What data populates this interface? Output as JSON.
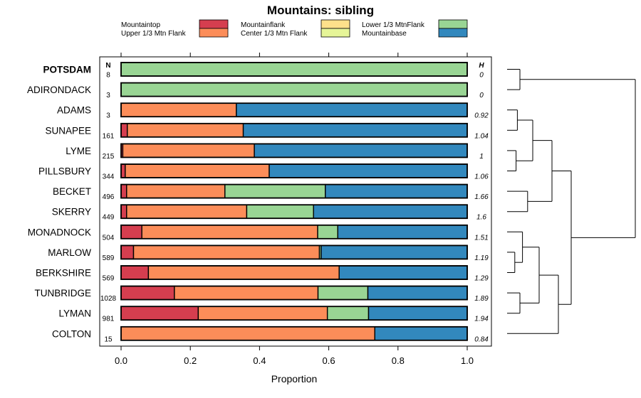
{
  "chart_data": {
    "type": "bar",
    "orientation": "horizontal",
    "stacked": true,
    "title": "Mountains: sibling",
    "xlabel": "Proportion",
    "xlim": [
      0,
      1
    ],
    "xticks": [
      "0.0",
      "0.2",
      "0.4",
      "0.6",
      "0.8",
      "1.0"
    ],
    "n_header": "N",
    "h_header": "H",
    "legend": [
      {
        "name": "Mountaintop",
        "color": "#d53e4f"
      },
      {
        "name": "Upper 1/3 Mtn Flank",
        "color": "#fc8d59"
      },
      {
        "name": "Mountainflank",
        "color": "#fee08b"
      },
      {
        "name": "Center 1/3 Mtn Flank",
        "color": "#e6f598"
      },
      {
        "name": "Lower 1/3 MtnFlank",
        "color": "#99d594"
      },
      {
        "name": "Mountainbase",
        "color": "#3288bd"
      }
    ],
    "categories": [
      {
        "name": "POTSDAM",
        "bold": true,
        "n": "8",
        "h": "0",
        "values": [
          0,
          0,
          0,
          0,
          1.0,
          0
        ]
      },
      {
        "name": "ADIRONDACK",
        "bold": false,
        "n": "3",
        "h": "0",
        "values": [
          0,
          0,
          0,
          0,
          1.0,
          0
        ]
      },
      {
        "name": "ADAMS",
        "bold": false,
        "n": "3",
        "h": "0.92",
        "values": [
          0,
          0.333,
          0,
          0,
          0,
          0.667
        ]
      },
      {
        "name": "SUNAPEE",
        "bold": false,
        "n": "161",
        "h": "1.04",
        "values": [
          0.018,
          0.335,
          0,
          0,
          0,
          0.647
        ]
      },
      {
        "name": "LYME",
        "bold": false,
        "n": "215",
        "h": "1",
        "values": [
          0.005,
          0.38,
          0,
          0,
          0,
          0.615
        ]
      },
      {
        "name": "PILLSBURY",
        "bold": false,
        "n": "344",
        "h": "1.06",
        "values": [
          0.012,
          0.416,
          0,
          0,
          0,
          0.572
        ]
      },
      {
        "name": "BECKET",
        "bold": false,
        "n": "496",
        "h": "1.66",
        "values": [
          0.016,
          0.284,
          0,
          0,
          0.29,
          0.41
        ]
      },
      {
        "name": "SKERRY",
        "bold": false,
        "n": "449",
        "h": "1.6",
        "values": [
          0.016,
          0.347,
          0,
          0,
          0.193,
          0.444
        ]
      },
      {
        "name": "MONADNOCK",
        "bold": false,
        "n": "504",
        "h": "1.51",
        "values": [
          0.06,
          0.508,
          0,
          0,
          0.058,
          0.374
        ]
      },
      {
        "name": "MARLOW",
        "bold": false,
        "n": "589",
        "h": "1.19",
        "values": [
          0.036,
          0.537,
          0,
          0,
          0.005,
          0.422
        ]
      },
      {
        "name": "BERKSHIRE",
        "bold": false,
        "n": "569",
        "h": "1.29",
        "values": [
          0.079,
          0.551,
          0,
          0,
          0,
          0.37
        ]
      },
      {
        "name": "TUNBRIDGE",
        "bold": false,
        "n": "1028",
        "h": "1.89",
        "values": [
          0.154,
          0.415,
          0,
          0,
          0.144,
          0.287
        ]
      },
      {
        "name": "LYMAN",
        "bold": false,
        "n": "981",
        "h": "1.94",
        "values": [
          0.223,
          0.373,
          0,
          0,
          0.119,
          0.285
        ]
      },
      {
        "name": "COLTON",
        "bold": false,
        "n": "15",
        "h": "0.84",
        "values": [
          0,
          0.733,
          0,
          0,
          0,
          0.267
        ]
      }
    ],
    "dendrogram": {
      "placement": "right",
      "merges": [
        {
          "id": "A",
          "left": 0,
          "right": 1,
          "height": 0.1
        },
        {
          "id": "B",
          "left": 2,
          "right": 3,
          "height": 0.08
        },
        {
          "id": "C",
          "left": 4,
          "right": 5,
          "height": 0.07
        },
        {
          "id": "D",
          "left": "B",
          "right": "C",
          "height": 0.2
        },
        {
          "id": "E",
          "left": 6,
          "right": 7,
          "height": 0.16
        },
        {
          "id": "F",
          "left": "D",
          "right": "E",
          "height": 0.35
        },
        {
          "id": "G",
          "left": 9,
          "right": 10,
          "height": 0.06
        },
        {
          "id": "H",
          "left": 8,
          "right": "G",
          "height": 0.12
        },
        {
          "id": "I",
          "left": 11,
          "right": 12,
          "height": 0.1
        },
        {
          "id": "J",
          "left": "H",
          "right": "I",
          "height": 0.25
        },
        {
          "id": "K",
          "left": "J",
          "right": 13,
          "height": 0.4
        },
        {
          "id": "L",
          "left": "K",
          "right": "F",
          "height": 0.5
        },
        {
          "id": "M",
          "left": "A",
          "right": "L",
          "height": 1.0
        }
      ]
    }
  }
}
